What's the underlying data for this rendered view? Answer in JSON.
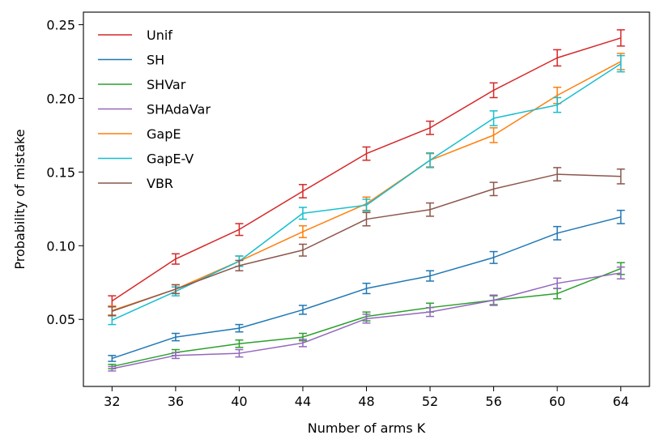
{
  "chart_data": {
    "type": "line",
    "xlabel": "Number of arms K",
    "ylabel": "Probability of mistake",
    "x": [
      32,
      36,
      40,
      44,
      48,
      52,
      56,
      60,
      64
    ],
    "xticks": [
      "32",
      "36",
      "40",
      "44",
      "48",
      "52",
      "56",
      "60",
      "64"
    ],
    "yticks": [
      "0.05",
      "0.10",
      "0.15",
      "0.20",
      "0.25"
    ],
    "yticks_values": [
      0.05,
      0.1,
      0.15,
      0.2,
      0.25
    ],
    "xlim": [
      30.2,
      65.8
    ],
    "ylim": [
      0.0045,
      0.2585
    ],
    "legend_position": "top-left",
    "series": [
      {
        "name": "Unif",
        "color": "#d62728",
        "values": [
          0.0625,
          0.091,
          0.111,
          0.137,
          0.1625,
          0.18,
          0.2055,
          0.2275,
          0.241
        ],
        "errors": [
          0.0035,
          0.0035,
          0.004,
          0.0045,
          0.0045,
          0.0045,
          0.005,
          0.0055,
          0.0055
        ]
      },
      {
        "name": "SH",
        "color": "#1f77b4",
        "values": [
          0.0235,
          0.038,
          0.044,
          0.0565,
          0.071,
          0.0795,
          0.092,
          0.1085,
          0.1195
        ],
        "errors": [
          0.002,
          0.0025,
          0.0025,
          0.003,
          0.0035,
          0.0035,
          0.004,
          0.0045,
          0.0045
        ]
      },
      {
        "name": "SHVar",
        "color": "#2ca02c",
        "values": [
          0.018,
          0.0275,
          0.0335,
          0.038,
          0.052,
          0.058,
          0.063,
          0.0675,
          0.0845
        ],
        "errors": [
          0.0015,
          0.002,
          0.0025,
          0.0025,
          0.003,
          0.003,
          0.003,
          0.0035,
          0.004
        ]
      },
      {
        "name": "SHAdaVar",
        "color": "#9467bd",
        "values": [
          0.0165,
          0.0255,
          0.027,
          0.034,
          0.0505,
          0.055,
          0.063,
          0.0745,
          0.0815
        ],
        "errors": [
          0.0015,
          0.002,
          0.0025,
          0.0025,
          0.003,
          0.003,
          0.0035,
          0.0035,
          0.004
        ]
      },
      {
        "name": "GapE",
        "color": "#ff7f0e",
        "values": [
          0.056,
          0.0705,
          0.0895,
          0.1095,
          0.1285,
          0.158,
          0.175,
          0.202,
          0.225
        ],
        "errors": [
          0.003,
          0.003,
          0.0035,
          0.004,
          0.0045,
          0.0045,
          0.005,
          0.0055,
          0.0055
        ]
      },
      {
        "name": "GapE-V",
        "color": "#17becf",
        "values": [
          0.0495,
          0.069,
          0.0895,
          0.122,
          0.1275,
          0.158,
          0.1865,
          0.1955,
          0.2235
        ],
        "errors": [
          0.003,
          0.003,
          0.0035,
          0.004,
          0.004,
          0.005,
          0.005,
          0.005,
          0.0055
        ]
      },
      {
        "name": "VBR",
        "color": "#8c564b",
        "values": [
          0.0555,
          0.0705,
          0.0865,
          0.097,
          0.118,
          0.1245,
          0.1385,
          0.1485,
          0.147
        ],
        "errors": [
          0.003,
          0.003,
          0.0035,
          0.004,
          0.0045,
          0.0045,
          0.0045,
          0.0045,
          0.005
        ]
      }
    ]
  }
}
